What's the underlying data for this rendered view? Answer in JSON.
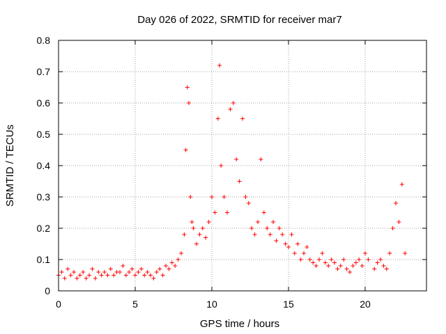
{
  "chart_data": {
    "type": "scatter",
    "title": "Day 026 of 2022, SRMTID for receiver mar7",
    "xlabel": "GPS time / hours",
    "ylabel": "SRMTID / TECUs",
    "xlim": [
      0,
      24
    ],
    "ylim": [
      0,
      0.8
    ],
    "x_ticks": [
      "0",
      "5",
      "10",
      "15",
      "20"
    ],
    "x_tick_values": [
      0,
      5,
      10,
      15,
      20
    ],
    "y_ticks": [
      "0",
      "0.1",
      "0.2",
      "0.3",
      "0.4",
      "0.5",
      "0.6",
      "0.7",
      "0.8"
    ],
    "y_tick_values": [
      0,
      0.1,
      0.2,
      0.3,
      0.4,
      0.5,
      0.6,
      0.7,
      0.8
    ],
    "grid": true,
    "marker": "+",
    "color": "#ff0000",
    "series": [
      {
        "name": "SRMTID",
        "values_description": "SRMTID in TECU vs GPS hour",
        "x": [
          0.0,
          0.2,
          0.4,
          0.6,
          0.8,
          1.0,
          1.2,
          1.4,
          1.6,
          1.8,
          2.0,
          2.2,
          2.4,
          2.6,
          2.8,
          3.0,
          3.2,
          3.4,
          3.6,
          3.8,
          4.0,
          4.2,
          4.4,
          4.6,
          4.8,
          5.0,
          5.2,
          5.4,
          5.6,
          5.8,
          6.0,
          6.2,
          6.4,
          6.6,
          6.8,
          7.0,
          7.2,
          7.4,
          7.6,
          7.8,
          8.0,
          8.2,
          8.3,
          8.4,
          8.5,
          8.6,
          8.7,
          8.8,
          9.0,
          9.2,
          9.4,
          9.6,
          9.8,
          10.0,
          10.2,
          10.4,
          10.5,
          10.6,
          10.8,
          11.0,
          11.2,
          11.4,
          11.6,
          11.8,
          12.0,
          12.2,
          12.4,
          12.6,
          12.8,
          13.0,
          13.2,
          13.4,
          13.6,
          13.8,
          14.0,
          14.2,
          14.4,
          14.6,
          14.8,
          15.0,
          15.2,
          15.4,
          15.6,
          15.8,
          16.0,
          16.2,
          16.4,
          16.6,
          16.8,
          17.0,
          17.2,
          17.4,
          17.6,
          17.8,
          18.0,
          18.2,
          18.4,
          18.6,
          18.8,
          19.0,
          19.2,
          19.4,
          19.6,
          19.8,
          20.0,
          20.2,
          20.6,
          20.8,
          21.0,
          21.2,
          21.4,
          21.6,
          21.8,
          22.0,
          22.2,
          22.4,
          22.6
        ],
        "y": [
          0.05,
          0.06,
          0.04,
          0.07,
          0.05,
          0.06,
          0.04,
          0.05,
          0.06,
          0.04,
          0.05,
          0.07,
          0.04,
          0.06,
          0.05,
          0.06,
          0.05,
          0.07,
          0.05,
          0.06,
          0.06,
          0.08,
          0.05,
          0.06,
          0.07,
          0.05,
          0.06,
          0.07,
          0.05,
          0.06,
          0.05,
          0.04,
          0.06,
          0.07,
          0.05,
          0.08,
          0.07,
          0.09,
          0.08,
          0.1,
          0.12,
          0.18,
          0.45,
          0.65,
          0.6,
          0.3,
          0.22,
          0.2,
          0.15,
          0.18,
          0.2,
          0.17,
          0.22,
          0.3,
          0.25,
          0.55,
          0.72,
          0.4,
          0.3,
          0.25,
          0.58,
          0.6,
          0.42,
          0.35,
          0.55,
          0.3,
          0.28,
          0.2,
          0.18,
          0.22,
          0.42,
          0.25,
          0.2,
          0.18,
          0.22,
          0.16,
          0.2,
          0.18,
          0.15,
          0.14,
          0.18,
          0.12,
          0.15,
          0.1,
          0.12,
          0.14,
          0.1,
          0.09,
          0.08,
          0.1,
          0.12,
          0.09,
          0.08,
          0.1,
          0.09,
          0.07,
          0.08,
          0.1,
          0.07,
          0.06,
          0.08,
          0.09,
          0.1,
          0.08,
          0.12,
          0.1,
          0.07,
          0.09,
          0.1,
          0.08,
          0.07,
          0.12,
          0.2,
          0.28,
          0.22,
          0.34,
          0.12
        ]
      }
    ]
  }
}
